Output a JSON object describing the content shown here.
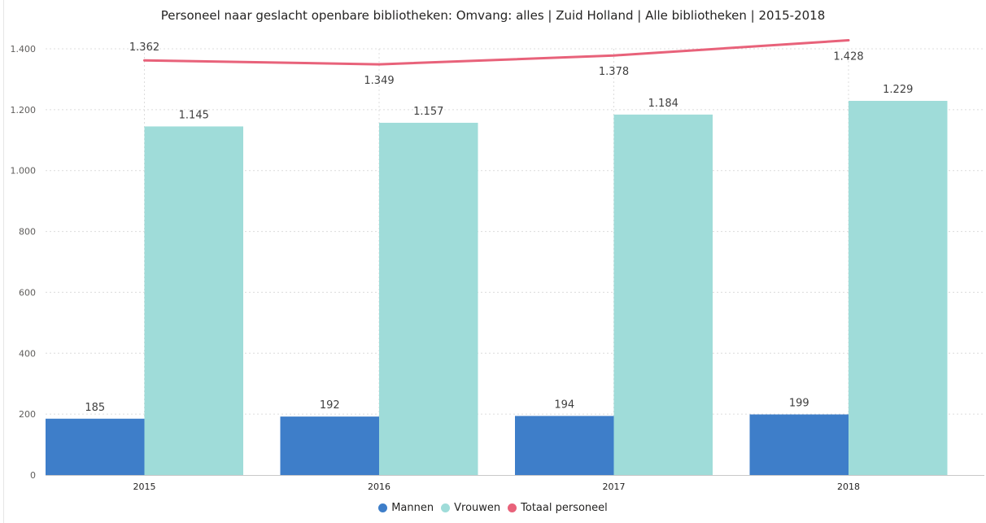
{
  "chart_data": {
    "type": "bar",
    "title": "Personeel naar geslacht openbare bibliotheken: Omvang: alles | Zuid Holland | Alle bibliotheken | 2015-2018",
    "categories": [
      "2015",
      "2016",
      "2017",
      "2018"
    ],
    "series": [
      {
        "name": "Mannen",
        "type": "bar",
        "color": "#3e7ec9",
        "values": [
          185,
          192,
          194,
          199
        ],
        "labels": [
          "185",
          "192",
          "194",
          "199"
        ]
      },
      {
        "name": "Vrouwen",
        "type": "bar",
        "color": "#9fdcd9",
        "values": [
          1145,
          1157,
          1184,
          1229
        ],
        "labels": [
          "1.145",
          "1.157",
          "1.184",
          "1.229"
        ]
      },
      {
        "name": "Totaal personeel",
        "type": "line",
        "color": "#e8627a",
        "values": [
          1362,
          1349,
          1378,
          1428
        ],
        "labels": [
          "1.362",
          "1.349",
          "1.378",
          "1.428"
        ]
      }
    ],
    "ylim": [
      0,
      1400
    ],
    "yticks": [
      0,
      200,
      400,
      600,
      800,
      1000,
      1200,
      1400
    ],
    "ytick_labels": [
      "0",
      "200",
      "400",
      "600",
      "800",
      "1.000",
      "1.200",
      "1.400"
    ],
    "xlabel": "",
    "ylabel": "",
    "grid": true,
    "legend_position": "bottom-center"
  }
}
